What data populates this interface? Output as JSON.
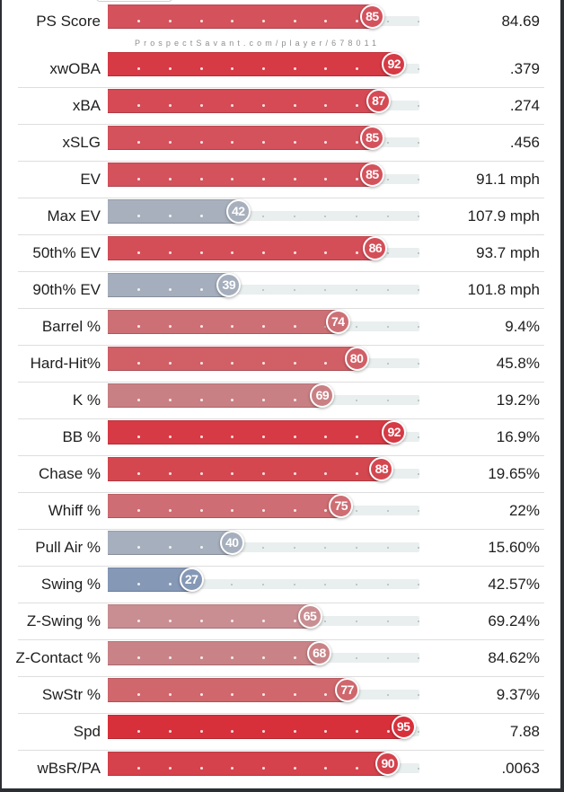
{
  "watermark": "ProspectSavant.com/player/678011",
  "colors": {
    "frame": "#2b2f33",
    "track": "#e9efee"
  },
  "chart_data": {
    "type": "bar",
    "orientation": "horizontal",
    "xlim": [
      0,
      100
    ],
    "rows": [
      {
        "label": "PS Score",
        "percentile": 85,
        "value": "84.69",
        "color": "#d4525c"
      },
      {
        "label": "xwOBA",
        "percentile": 92,
        "value": ".379",
        "color": "#d63a45"
      },
      {
        "label": "xBA",
        "percentile": 87,
        "value": ".274",
        "color": "#d54a54"
      },
      {
        "label": "xSLG",
        "percentile": 85,
        "value": ".456",
        "color": "#d4525c"
      },
      {
        "label": "EV",
        "percentile": 85,
        "value": "91.1 mph",
        "color": "#d4525c"
      },
      {
        "label": "Max EV",
        "percentile": 42,
        "value": "107.9 mph",
        "color": "#a8b0bd"
      },
      {
        "label": "50th% EV",
        "percentile": 86,
        "value": "93.7 mph",
        "color": "#d44e58"
      },
      {
        "label": "90th% EV",
        "percentile": 39,
        "value": "101.8 mph",
        "color": "#a5aebd"
      },
      {
        "label": "Barrel %",
        "percentile": 74,
        "value": "9.4%",
        "color": "#cd7076"
      },
      {
        "label": "Hard-Hit%",
        "percentile": 80,
        "value": "45.8%",
        "color": "#d15f66"
      },
      {
        "label": "K %",
        "percentile": 69,
        "value": "19.2%",
        "color": "#c98084"
      },
      {
        "label": "BB %",
        "percentile": 92,
        "value": "16.9%",
        "color": "#d63a45"
      },
      {
        "label": "Chase %",
        "percentile": 88,
        "value": "19.65%",
        "color": "#d5474f"
      },
      {
        "label": "Whiff %",
        "percentile": 75,
        "value": "22%",
        "color": "#ce6d73"
      },
      {
        "label": "Pull Air %",
        "percentile": 40,
        "value": "15.60%",
        "color": "#a6afbd"
      },
      {
        "label": "Swing %",
        "percentile": 27,
        "value": "42.57%",
        "color": "#8598b6"
      },
      {
        "label": "Z-Swing %",
        "percentile": 65,
        "value": "69.24%",
        "color": "#c98e92"
      },
      {
        "label": "Z-Contact %",
        "percentile": 68,
        "value": "84.62%",
        "color": "#c98387"
      },
      {
        "label": "SwStr %",
        "percentile": 77,
        "value": "9.37%",
        "color": "#cf676d"
      },
      {
        "label": "Spd",
        "percentile": 95,
        "value": "7.88",
        "color": "#d8303b"
      },
      {
        "label": "wBsR/PA",
        "percentile": 90,
        "value": ".0063",
        "color": "#d5424c"
      }
    ]
  }
}
